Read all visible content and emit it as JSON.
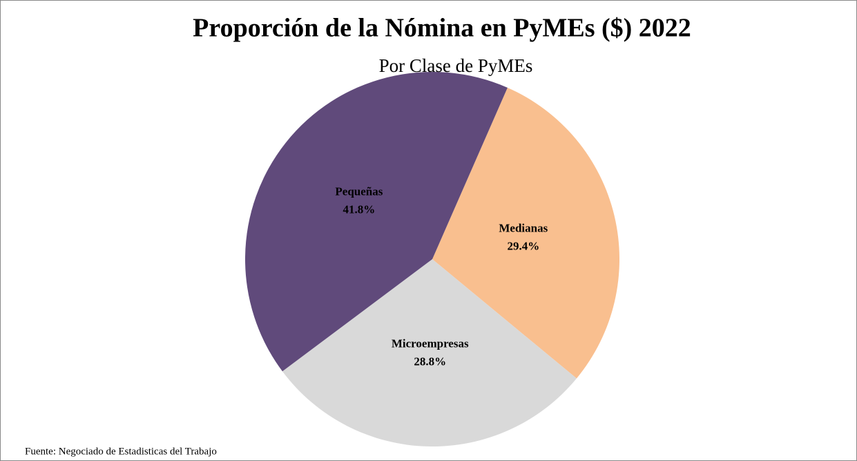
{
  "chart_data": {
    "type": "pie",
    "title": "Proporción de la Nómina en PyMEs ($) 2022",
    "subtitle": "Por Clase de PyMEs",
    "categories": [
      "Medianas",
      "Microempresas",
      "Pequeñas"
    ],
    "values": [
      29.4,
      28.8,
      41.8
    ],
    "value_labels": [
      "29.4%",
      "28.8%",
      "41.8%"
    ],
    "colors": [
      "#f9bf8f",
      "#d9d9d9",
      "#604a7b"
    ],
    "source": "Fuente: Negociado  de Estadisticas del Trabajo"
  }
}
